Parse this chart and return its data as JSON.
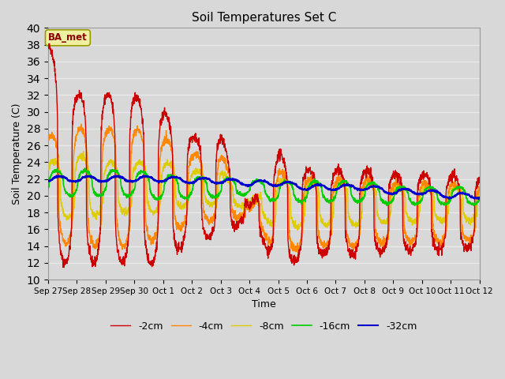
{
  "title": "Soil Temperatures Set C",
  "xlabel": "Time",
  "ylabel": "Soil Temperature (C)",
  "ylim": [
    10,
    40
  ],
  "colors_2cm": "#cc0000",
  "colors_4cm": "#ff8800",
  "colors_8cm": "#ddcc00",
  "colors_16cm": "#00cc00",
  "colors_32cm": "#0000cc",
  "legend_labels": [
    "-2cm",
    "-4cm",
    "-8cm",
    "-16cm",
    "-32cm"
  ],
  "annotation_text": "BA_met",
  "xtick_labels": [
    "Sep 27",
    "Sep 28",
    "Sep 29",
    "Sep 30",
    "Oct 1",
    "Oct 2",
    "Oct 3",
    "Oct 4",
    "Oct 5",
    "Oct 6",
    "Oct 7",
    "Oct 8",
    "Oct 9",
    "Oct 10",
    "Oct 11",
    "Oct 12"
  ],
  "fig_bg": "#d8d8d8",
  "plot_bg": "#d8d8d8",
  "grid_color": "#e8e8e8"
}
